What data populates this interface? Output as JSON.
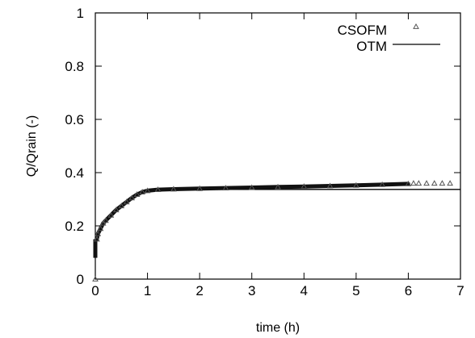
{
  "chart_data": {
    "type": "scatter",
    "xlabel": "time (h)",
    "ylabel": "Q/Qrain (-)",
    "xlim": [
      0,
      7
    ],
    "ylim": [
      0,
      1
    ],
    "xticks": [
      "0",
      "1",
      "2",
      "3",
      "4",
      "5",
      "6",
      "7"
    ],
    "yticks": [
      "0",
      "0.2",
      "0.4",
      "0.6",
      "0.8",
      "1"
    ],
    "grid": false,
    "legend_position": "top-right",
    "series": [
      {
        "name": "CSOFM",
        "type": "scatter",
        "marker": "triangle",
        "color": "#555555",
        "x": [
          0,
          0.03,
          0.05,
          0.1,
          0.15,
          0.2,
          0.3,
          0.4,
          0.5,
          0.6,
          0.7,
          0.8,
          0.9,
          1.0,
          1.2,
          1.5,
          2.0,
          2.5,
          3.0,
          3.5,
          4.0,
          4.5,
          5.0,
          5.5,
          6.0,
          6.1,
          6.2,
          6.35,
          6.5,
          6.65,
          6.8
        ],
        "y": [
          0.0,
          0.15,
          0.17,
          0.19,
          0.21,
          0.22,
          0.24,
          0.26,
          0.275,
          0.29,
          0.305,
          0.318,
          0.327,
          0.332,
          0.336,
          0.338,
          0.34,
          0.342,
          0.344,
          0.346,
          0.348,
          0.35,
          0.352,
          0.355,
          0.358,
          0.36,
          0.36,
          0.36,
          0.36,
          0.36,
          0.36
        ]
      },
      {
        "name": "OTM",
        "type": "line",
        "color": "#000000",
        "x": [
          0,
          0.02,
          0.05,
          0.1,
          0.15,
          0.2,
          0.3,
          0.4,
          0.5,
          0.6,
          0.7,
          0.8,
          0.9,
          1.0,
          1.2,
          1.5,
          2.0,
          3.0,
          4.0,
          5.0,
          6.0,
          7.0
        ],
        "y": [
          0.08,
          0.15,
          0.17,
          0.19,
          0.205,
          0.218,
          0.238,
          0.256,
          0.272,
          0.288,
          0.302,
          0.316,
          0.326,
          0.331,
          0.334,
          0.336,
          0.337,
          0.337,
          0.337,
          0.337,
          0.337,
          0.337
        ]
      }
    ]
  }
}
